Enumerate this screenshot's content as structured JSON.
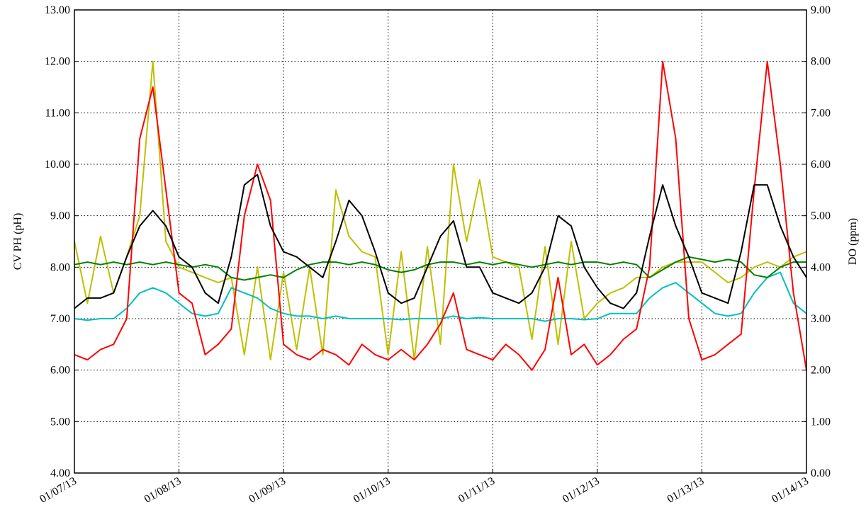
{
  "chart_data": {
    "type": "line",
    "ylabel": "CV PH (pH)",
    "y2label": "DO (ppm)",
    "grid": true,
    "xlim": [
      0,
      7
    ],
    "xticks": [
      {
        "value": 0,
        "label": "01/07/13"
      },
      {
        "value": 1,
        "label": "01/08/13"
      },
      {
        "value": 2,
        "label": "01/09/13"
      },
      {
        "value": 3,
        "label": "01/10/13"
      },
      {
        "value": 4,
        "label": "01/11/13"
      },
      {
        "value": 5,
        "label": "01/12/13"
      },
      {
        "value": 6,
        "label": "01/13/13"
      },
      {
        "value": 7,
        "label": "01/14/13"
      }
    ],
    "ylim": [
      4,
      13
    ],
    "yticks": [
      {
        "value": 4,
        "label": "4.00"
      },
      {
        "value": 5,
        "label": "5.00"
      },
      {
        "value": 6,
        "label": "6.00"
      },
      {
        "value": 7,
        "label": "7.00"
      },
      {
        "value": 8,
        "label": "8.00"
      },
      {
        "value": 9,
        "label": "9.00"
      },
      {
        "value": 10,
        "label": "10.00"
      },
      {
        "value": 11,
        "label": "11.00"
      },
      {
        "value": 12,
        "label": "12.00"
      },
      {
        "value": 13,
        "label": "13.00"
      }
    ],
    "y2lim": [
      0,
      9
    ],
    "y2ticks": [
      {
        "value": 0,
        "label": "0.00"
      },
      {
        "value": 1,
        "label": "1.00"
      },
      {
        "value": 2,
        "label": "2.00"
      },
      {
        "value": 3,
        "label": "3.00"
      },
      {
        "value": 4,
        "label": "4.00"
      },
      {
        "value": 5,
        "label": "5.00"
      },
      {
        "value": 6,
        "label": "6.00"
      },
      {
        "value": 7,
        "label": "7.00"
      },
      {
        "value": 8,
        "label": "8.00"
      },
      {
        "value": 9,
        "label": "9.00"
      }
    ],
    "x": [
      0,
      0.125,
      0.25,
      0.375,
      0.5,
      0.625,
      0.75,
      0.875,
      1,
      1.125,
      1.25,
      1.375,
      1.5,
      1.625,
      1.75,
      1.875,
      2,
      2.125,
      2.25,
      2.375,
      2.5,
      2.625,
      2.75,
      2.875,
      3,
      3.125,
      3.25,
      3.375,
      3.5,
      3.625,
      3.75,
      3.875,
      4,
      4.125,
      4.25,
      4.375,
      4.5,
      4.625,
      4.75,
      4.875,
      5,
      5.125,
      5.25,
      5.375,
      5.5,
      5.625,
      5.75,
      5.875,
      6,
      6.125,
      6.25,
      6.375,
      6.5,
      6.625,
      6.75,
      6.875,
      7
    ],
    "series": [
      {
        "color": "#bfbf00",
        "values": [
          8.5,
          7.3,
          8.6,
          7.5,
          8.2,
          9.0,
          12.0,
          8.5,
          8.0,
          7.9,
          7.8,
          7.7,
          7.8,
          6.3,
          8.0,
          6.2,
          7.9,
          6.4,
          8.0,
          6.3,
          9.5,
          8.6,
          8.3,
          8.2,
          6.3,
          8.3,
          6.2,
          8.4,
          6.5,
          10.0,
          8.5,
          9.7,
          8.2,
          8.1,
          8.0,
          6.6,
          8.4,
          6.5,
          8.5,
          7.0,
          7.3,
          7.5,
          7.6,
          7.8,
          7.8,
          8.0,
          8.1,
          8.1,
          8.1,
          7.9,
          7.7,
          7.8,
          8.0,
          8.1,
          8.0,
          8.2,
          8.3
        ]
      },
      {
        "color": "#00bfbf",
        "values": [
          7.0,
          6.97,
          7.0,
          7.0,
          7.2,
          7.5,
          7.6,
          7.5,
          7.3,
          7.1,
          7.05,
          7.1,
          7.6,
          7.5,
          7.4,
          7.2,
          7.1,
          7.05,
          7.05,
          7.0,
          7.05,
          7.0,
          7.0,
          7.0,
          7.0,
          6.98,
          7.0,
          7.0,
          7.0,
          7.05,
          7.0,
          7.02,
          7.0,
          7.0,
          7.0,
          7.0,
          6.95,
          7.0,
          7.0,
          6.98,
          7.0,
          7.1,
          7.1,
          7.1,
          7.4,
          7.6,
          7.7,
          7.5,
          7.3,
          7.1,
          7.05,
          7.1,
          7.5,
          7.8,
          7.9,
          7.3,
          7.1
        ]
      },
      {
        "color": "#008000",
        "values": [
          8.05,
          8.1,
          8.05,
          8.1,
          8.05,
          8.1,
          8.05,
          8.1,
          8.05,
          8.0,
          8.05,
          8.0,
          7.8,
          7.75,
          7.8,
          7.85,
          7.8,
          7.95,
          8.05,
          8.1,
          8.1,
          8.05,
          8.1,
          8.05,
          7.95,
          7.9,
          7.95,
          8.05,
          8.1,
          8.1,
          8.05,
          8.1,
          8.05,
          8.1,
          8.05,
          8.0,
          8.05,
          8.1,
          8.05,
          8.1,
          8.1,
          8.05,
          8.1,
          8.05,
          7.8,
          7.95,
          8.1,
          8.2,
          8.15,
          8.1,
          8.15,
          8.1,
          7.85,
          7.8,
          8.0,
          8.1,
          8.1
        ]
      },
      {
        "color": "#ff0000",
        "values": [
          6.3,
          6.2,
          6.4,
          6.5,
          7.0,
          10.5,
          11.5,
          9.5,
          7.5,
          7.3,
          6.3,
          6.5,
          6.8,
          9.0,
          10.0,
          9.3,
          6.5,
          6.3,
          6.2,
          6.4,
          6.3,
          6.1,
          6.5,
          6.3,
          6.2,
          6.4,
          6.2,
          6.5,
          6.9,
          7.5,
          6.4,
          6.3,
          6.2,
          6.5,
          6.3,
          6.0,
          6.4,
          7.8,
          6.3,
          6.5,
          6.1,
          6.3,
          6.6,
          6.8,
          8.0,
          12.0,
          10.5,
          7.0,
          6.2,
          6.3,
          6.5,
          6.7,
          9.5,
          12.0,
          10.0,
          7.5,
          6.0
        ]
      },
      {
        "color": "#000000",
        "values": [
          7.2,
          7.4,
          7.4,
          7.5,
          8.2,
          8.8,
          9.1,
          8.8,
          8.2,
          8.0,
          7.5,
          7.3,
          8.2,
          9.6,
          9.8,
          8.8,
          8.3,
          8.2,
          8.0,
          7.8,
          8.5,
          9.3,
          9.0,
          8.3,
          7.5,
          7.3,
          7.4,
          8.0,
          8.6,
          8.9,
          8.0,
          8.0,
          7.5,
          7.4,
          7.3,
          7.5,
          8.0,
          9.0,
          8.8,
          8.0,
          7.6,
          7.3,
          7.2,
          7.5,
          8.6,
          9.6,
          8.8,
          8.2,
          7.5,
          7.4,
          7.3,
          8.3,
          9.6,
          9.6,
          8.8,
          8.2,
          7.8
        ]
      }
    ]
  }
}
